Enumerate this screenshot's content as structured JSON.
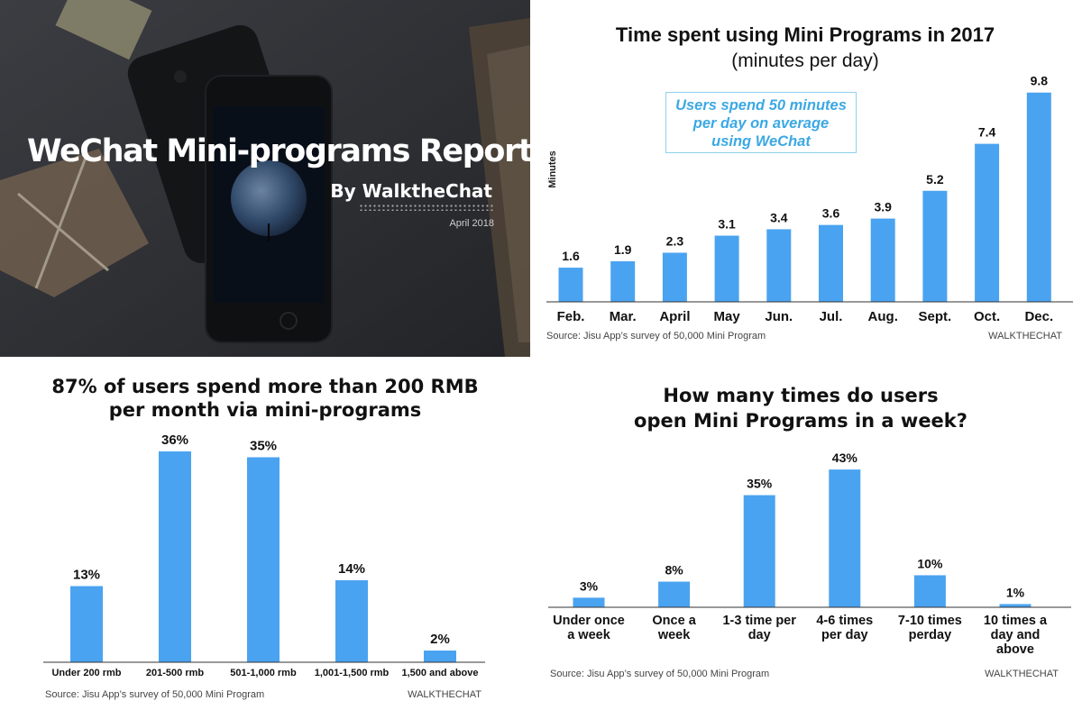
{
  "cover": {
    "title": "WeChat Mini-programs Report",
    "byline": "By WalktheChat",
    "date": "April 2018"
  },
  "chart_data": [
    {
      "type": "bar",
      "title": "Time spent using Mini Programs in 2017",
      "subtitle": "(minutes per day)",
      "ylabel": "Minutes",
      "xlabel": "",
      "categories": [
        "Feb.",
        "Mar.",
        "April",
        "May",
        "Jun.",
        "Jul.",
        "Aug.",
        "Sept.",
        "Oct.",
        "Dec."
      ],
      "values": [
        1.6,
        1.9,
        2.3,
        3.1,
        3.4,
        3.6,
        3.9,
        5.2,
        7.4,
        9.8
      ],
      "value_labels": [
        "1.6",
        "1.9",
        "2.3",
        "3.1",
        "3.4",
        "3.6",
        "3.9",
        "5.2",
        "7.4",
        "9.8"
      ],
      "ylim": [
        0,
        10
      ],
      "annotation": [
        "Users spend 50 minutes",
        "per day on average",
        "using WeChat"
      ],
      "source": "Source: Jisu App’s survey of 50,000 Mini Program",
      "brand": "WALKTHECHAT",
      "grid": false,
      "color": "#4aa3f0"
    },
    {
      "type": "bar",
      "title_lines": [
        "87% of users spend more than 200 RMB",
        "per month via mini-programs"
      ],
      "categories": [
        "Under 200 rmb",
        "201-500 rmb",
        "501-1,000 rmb",
        "1,001-1,500 rmb",
        "1,500 and above"
      ],
      "values": [
        13,
        36,
        35,
        14,
        2
      ],
      "value_labels": [
        "13%",
        "36%",
        "35%",
        "14%",
        "2%"
      ],
      "ylim": [
        0,
        40
      ],
      "source": "Source: Jisu App’s survey of 50,000 Mini Program",
      "brand": "WALKTHECHAT",
      "grid": false,
      "color": "#4aa3f0"
    },
    {
      "type": "bar",
      "title_lines": [
        "How many times do users",
        "open Mini Programs in a week?"
      ],
      "categories": [
        [
          "Under once",
          "a week"
        ],
        [
          "Once a",
          "week"
        ],
        [
          "1-3 time per",
          "day"
        ],
        [
          "4-6 times",
          "per day"
        ],
        [
          "7-10 times",
          "perday"
        ],
        [
          "10 times a",
          "day and",
          "above"
        ]
      ],
      "values": [
        3,
        8,
        35,
        43,
        10,
        1
      ],
      "value_labels": [
        "3%",
        "8%",
        "35%",
        "43%",
        "10%",
        "1%"
      ],
      "ylim": [
        0,
        45
      ],
      "source": "Source: Jisu App’s survey of 50,000 Mini Program",
      "brand": "WALKTHECHAT",
      "grid": false,
      "color": "#4aa3f0"
    }
  ]
}
